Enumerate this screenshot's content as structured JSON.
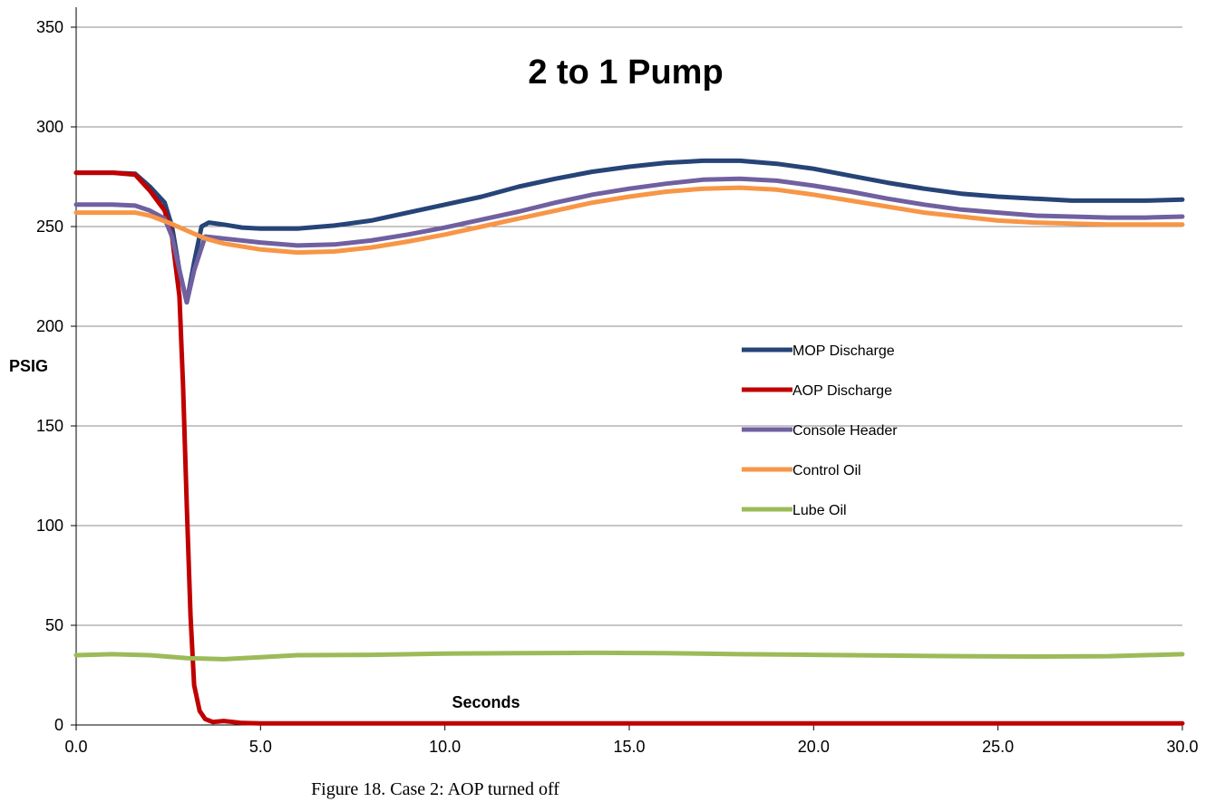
{
  "caption": "Figure 18. Case 2: AOP turned off",
  "chart_data": {
    "type": "line",
    "title": "2 to 1 Pump",
    "xlabel": "Seconds",
    "ylabel": "PSIG",
    "xlim": [
      0,
      30
    ],
    "ylim": [
      0,
      350
    ],
    "x_ticks": [
      "0.0",
      "5.0",
      "10.0",
      "15.0",
      "20.0",
      "25.0",
      "30.0"
    ],
    "y_ticks": [
      "0",
      "50",
      "100",
      "150",
      "200",
      "250",
      "300",
      "350"
    ],
    "grid": "horizontal",
    "legend_position": "center-right",
    "series": [
      {
        "name": "MOP Discharge",
        "color": "#264478",
        "points": [
          [
            0,
            277
          ],
          [
            1,
            277
          ],
          [
            1.6,
            276.5
          ],
          [
            2,
            270
          ],
          [
            2.4,
            262
          ],
          [
            2.6,
            250
          ],
          [
            2.8,
            228
          ],
          [
            3.0,
            212
          ],
          [
            3.2,
            232
          ],
          [
            3.4,
            250
          ],
          [
            3.6,
            252
          ],
          [
            4.0,
            251
          ],
          [
            4.5,
            249.5
          ],
          [
            5,
            249
          ],
          [
            6,
            249
          ],
          [
            7,
            250.5
          ],
          [
            8,
            253
          ],
          [
            9,
            257
          ],
          [
            10,
            261
          ],
          [
            11,
            265
          ],
          [
            12,
            270
          ],
          [
            13,
            274
          ],
          [
            14,
            277.5
          ],
          [
            15,
            280
          ],
          [
            16,
            282
          ],
          [
            17,
            283
          ],
          [
            18,
            283
          ],
          [
            19,
            281.5
          ],
          [
            20,
            279
          ],
          [
            21,
            275.5
          ],
          [
            22,
            272
          ],
          [
            23,
            269
          ],
          [
            24,
            266.5
          ],
          [
            25,
            265
          ],
          [
            26,
            264
          ],
          [
            27,
            263
          ],
          [
            28,
            263
          ],
          [
            29,
            263
          ],
          [
            30,
            263.5
          ]
        ]
      },
      {
        "name": "AOP Discharge",
        "color": "#C00000",
        "points": [
          [
            0,
            277
          ],
          [
            1,
            277
          ],
          [
            1.6,
            276
          ],
          [
            2,
            268
          ],
          [
            2.4,
            258
          ],
          [
            2.6,
            245
          ],
          [
            2.8,
            215
          ],
          [
            2.9,
            170
          ],
          [
            3.0,
            110
          ],
          [
            3.1,
            55
          ],
          [
            3.2,
            20
          ],
          [
            3.35,
            7
          ],
          [
            3.5,
            3
          ],
          [
            3.7,
            1.5
          ],
          [
            4.0,
            2
          ],
          [
            4.5,
            1
          ],
          [
            5,
            0.8
          ],
          [
            10,
            0.8
          ],
          [
            15,
            0.8
          ],
          [
            20,
            0.8
          ],
          [
            25,
            0.8
          ],
          [
            30,
            0.8
          ]
        ]
      },
      {
        "name": "Console Header",
        "color": "#7060A0",
        "points": [
          [
            0,
            261
          ],
          [
            1,
            261
          ],
          [
            1.6,
            260.5
          ],
          [
            2,
            258
          ],
          [
            2.4,
            254
          ],
          [
            2.6,
            245
          ],
          [
            2.8,
            228
          ],
          [
            3.0,
            212
          ],
          [
            3.2,
            228
          ],
          [
            3.5,
            245
          ],
          [
            4,
            244
          ],
          [
            5,
            242
          ],
          [
            6,
            240.5
          ],
          [
            7,
            241
          ],
          [
            8,
            243
          ],
          [
            9,
            246
          ],
          [
            10,
            249.5
          ],
          [
            11,
            253.5
          ],
          [
            12,
            257.5
          ],
          [
            13,
            262
          ],
          [
            14,
            266
          ],
          [
            15,
            269
          ],
          [
            16,
            271.5
          ],
          [
            17,
            273.5
          ],
          [
            18,
            274
          ],
          [
            19,
            273
          ],
          [
            20,
            270.5
          ],
          [
            21,
            267.5
          ],
          [
            22,
            264
          ],
          [
            23,
            261
          ],
          [
            24,
            258.5
          ],
          [
            25,
            257
          ],
          [
            26,
            255.5
          ],
          [
            27,
            255
          ],
          [
            28,
            254.5
          ],
          [
            29,
            254.5
          ],
          [
            30,
            255
          ]
        ]
      },
      {
        "name": "Control Oil",
        "color": "#F79646",
        "points": [
          [
            0,
            257
          ],
          [
            1,
            257
          ],
          [
            1.6,
            257
          ],
          [
            2,
            255.5
          ],
          [
            2.5,
            252
          ],
          [
            3.0,
            248
          ],
          [
            3.5,
            244
          ],
          [
            4,
            241.5
          ],
          [
            5,
            238.5
          ],
          [
            6,
            237
          ],
          [
            7,
            237.5
          ],
          [
            8,
            239.5
          ],
          [
            9,
            242.5
          ],
          [
            10,
            246
          ],
          [
            11,
            250
          ],
          [
            12,
            254
          ],
          [
            13,
            258
          ],
          [
            14,
            262
          ],
          [
            15,
            265
          ],
          [
            16,
            267.5
          ],
          [
            17,
            269
          ],
          [
            18,
            269.5
          ],
          [
            19,
            268.5
          ],
          [
            20,
            266
          ],
          [
            21,
            263
          ],
          [
            22,
            260
          ],
          [
            23,
            257
          ],
          [
            24,
            255
          ],
          [
            25,
            253
          ],
          [
            26,
            252
          ],
          [
            27,
            251.5
          ],
          [
            28,
            251
          ],
          [
            29,
            251
          ],
          [
            30,
            251
          ]
        ]
      },
      {
        "name": "Lube Oil",
        "color": "#9BBB59",
        "points": [
          [
            0,
            35
          ],
          [
            1,
            35.5
          ],
          [
            2,
            35
          ],
          [
            3,
            33.5
          ],
          [
            4,
            33
          ],
          [
            5,
            34
          ],
          [
            6,
            35
          ],
          [
            8,
            35.2
          ],
          [
            10,
            35.8
          ],
          [
            12,
            36
          ],
          [
            14,
            36.2
          ],
          [
            16,
            36
          ],
          [
            18,
            35.5
          ],
          [
            20,
            35.2
          ],
          [
            22,
            34.8
          ],
          [
            24,
            34.5
          ],
          [
            26,
            34.3
          ],
          [
            28,
            34.5
          ],
          [
            30,
            35.5
          ]
        ]
      }
    ]
  }
}
